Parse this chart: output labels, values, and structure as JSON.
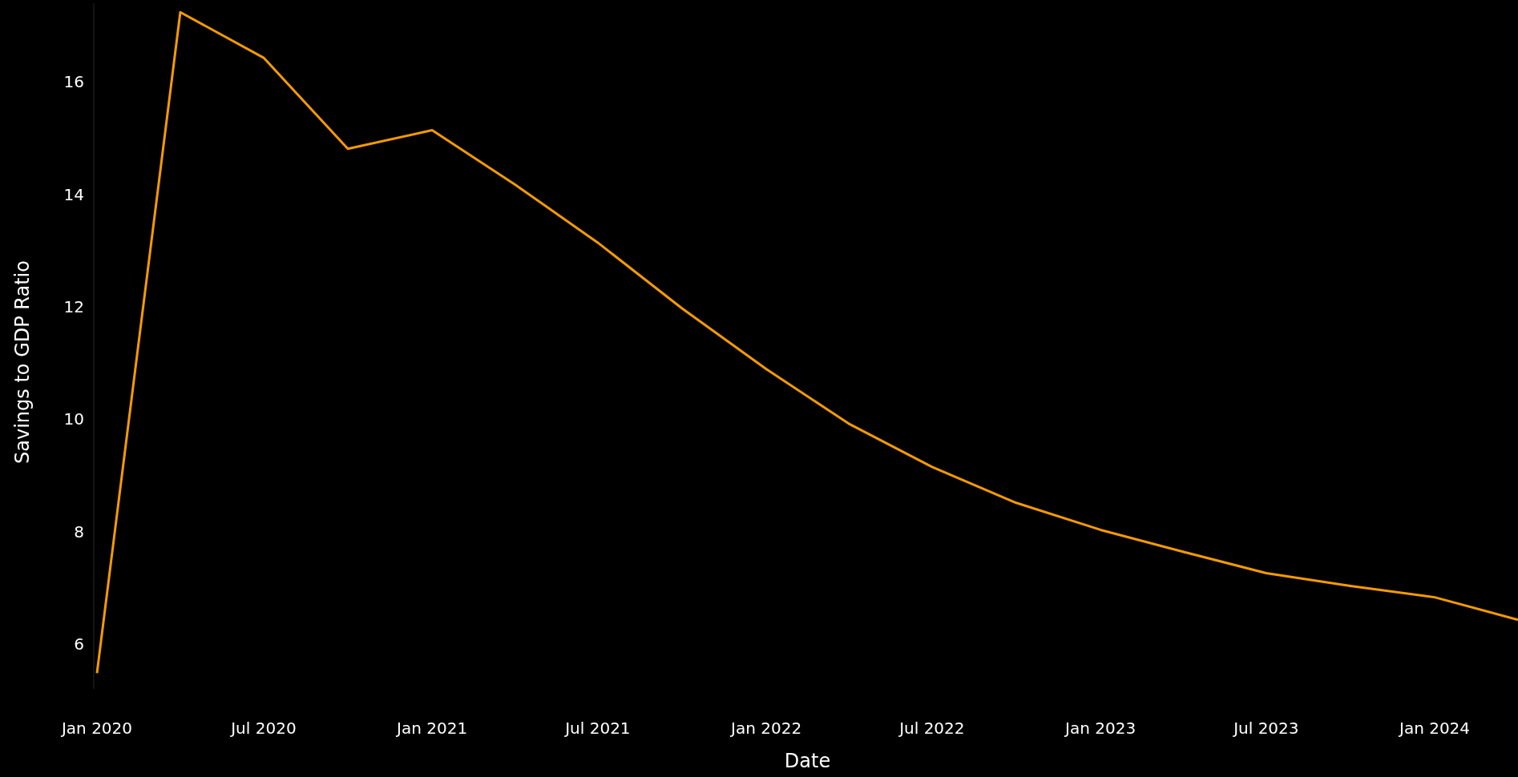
{
  "chart_data": {
    "type": "line",
    "xlabel": "Date",
    "ylabel": "Savings to GDP Ratio",
    "x": [
      "2020-01-01",
      "2020-04-01",
      "2020-07-01",
      "2020-10-01",
      "2021-01-01",
      "2021-04-01",
      "2021-07-01",
      "2021-10-01",
      "2022-01-01",
      "2022-04-01",
      "2022-07-01",
      "2022-10-01",
      "2023-01-01",
      "2023-04-01",
      "2023-07-01",
      "2023-10-01",
      "2024-01-01",
      "2024-04-01"
    ],
    "series": [
      {
        "color": "#f59b00",
        "values": [
          5.48,
          17.24,
          16.43,
          14.81,
          15.14,
          14.18,
          13.14,
          11.97,
          10.89,
          9.92,
          9.15,
          8.51,
          8.03,
          7.64,
          7.26,
          7.03,
          6.83,
          6.43
        ]
      }
    ],
    "xlim": [
      "2020-01-01",
      "2024-04-01"
    ],
    "xticks": [
      {
        "value": "2020-01-01",
        "label": "Jan 2020"
      },
      {
        "value": "2020-07-01",
        "label": "Jul 2020"
      },
      {
        "value": "2021-01-01",
        "label": "Jan 2021"
      },
      {
        "value": "2021-07-01",
        "label": "Jul 2021"
      },
      {
        "value": "2022-01-01",
        "label": "Jan 2022"
      },
      {
        "value": "2022-07-01",
        "label": "Jul 2022"
      },
      {
        "value": "2023-01-01",
        "label": "Jan 2023"
      },
      {
        "value": "2023-07-01",
        "label": "Jul 2023"
      },
      {
        "value": "2024-01-01",
        "label": "Jan 2024"
      }
    ],
    "ylim": [
      5.2,
      17.4
    ],
    "yticks": [
      6,
      8,
      10,
      12,
      14,
      16
    ],
    "grid": false,
    "marker": "none",
    "line_style": "solid"
  }
}
